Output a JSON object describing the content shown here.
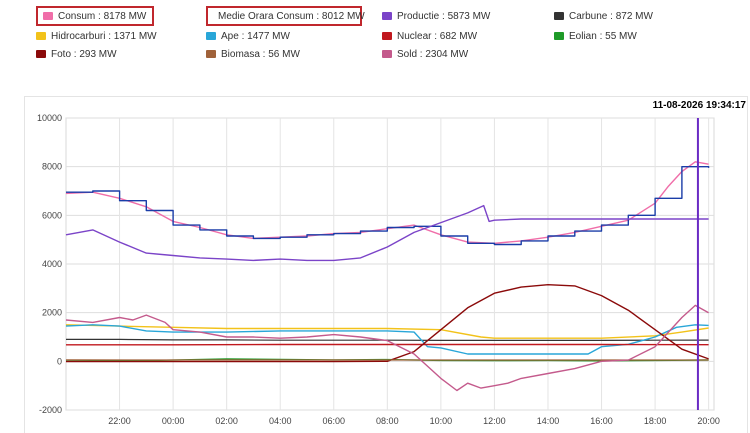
{
  "legend": [
    {
      "label": "Consum : 8178 MW",
      "color": "#f06ea9",
      "boxed": true
    },
    {
      "label": "Medie Orara Consum : 8012 MW",
      "color": "#1a3da8",
      "boxed": true
    },
    {
      "label": "Productie : 5873 MW",
      "color": "#7b44c8",
      "boxed": false
    },
    {
      "label": "Carbune : 872 MW",
      "color": "#333333",
      "boxed": false
    },
    {
      "label": "Hidrocarburi : 1371 MW",
      "color": "#f2c21a",
      "boxed": false
    },
    {
      "label": "Ape : 1477 MW",
      "color": "#29a6d8",
      "boxed": false
    },
    {
      "label": "Nuclear : 682 MW",
      "color": "#c0181e",
      "boxed": false
    },
    {
      "label": "Eolian : 55 MW",
      "color": "#1e9a28",
      "boxed": false
    },
    {
      "label": "Foto : 293 MW",
      "color": "#8b0a0a",
      "boxed": false
    },
    {
      "label": "Biomasa : 56 MW",
      "color": "#a0623a",
      "boxed": false
    },
    {
      "label": "Sold : 2304 MW",
      "color": "#c45a8c",
      "boxed": false
    }
  ],
  "timestamp": "11-08-2026 19:34:17",
  "chart_data": {
    "type": "line",
    "x_unit": "hours from 20:00 of previous day",
    "xlim": [
      20,
      44.2
    ],
    "ylim": [
      -2000,
      10000
    ],
    "y_ticks": [
      "10000",
      "8000",
      "6000",
      "4000",
      "2000",
      "0",
      "-2000"
    ],
    "y_tick_values": [
      10000,
      8000,
      6000,
      4000,
      2000,
      0,
      -2000
    ],
    "x_ticks": [
      "22:00",
      "00:00",
      "02:00",
      "04:00",
      "06:00",
      "08:00",
      "10:00",
      "12:00",
      "14:00",
      "16:00",
      "18:00",
      "20:00"
    ],
    "x_tick_values": [
      22,
      24,
      26,
      28,
      30,
      32,
      34,
      36,
      38,
      40,
      42,
      44
    ],
    "current_time_marker": 43.6,
    "grid": true,
    "series": [
      {
        "name": "Consum",
        "color": "#f06ea9",
        "width": 1.4,
        "points": [
          [
            20,
            6900
          ],
          [
            21,
            6950
          ],
          [
            22,
            6700
          ],
          [
            23,
            6350
          ],
          [
            24,
            5750
          ],
          [
            25,
            5500
          ],
          [
            26,
            5200
          ],
          [
            27,
            5050
          ],
          [
            28,
            5100
          ],
          [
            29,
            5150
          ],
          [
            30,
            5250
          ],
          [
            31,
            5300
          ],
          [
            32,
            5450
          ],
          [
            33,
            5600
          ],
          [
            34,
            5200
          ],
          [
            35,
            4900
          ],
          [
            36,
            4850
          ],
          [
            37,
            4950
          ],
          [
            38,
            5100
          ],
          [
            39,
            5300
          ],
          [
            40,
            5550
          ],
          [
            41,
            5800
          ],
          [
            42,
            6500
          ],
          [
            42.5,
            7200
          ],
          [
            43,
            7800
          ],
          [
            43.5,
            8200
          ],
          [
            44,
            8100
          ]
        ]
      },
      {
        "name": "Medie Orara Consum",
        "color": "#1a3da8",
        "width": 1.4,
        "step": true,
        "points": [
          [
            20,
            6950
          ],
          [
            21,
            7000
          ],
          [
            22,
            6600
          ],
          [
            23,
            6200
          ],
          [
            24,
            5600
          ],
          [
            25,
            5400
          ],
          [
            26,
            5150
          ],
          [
            27,
            5050
          ],
          [
            28,
            5100
          ],
          [
            29,
            5200
          ],
          [
            30,
            5250
          ],
          [
            31,
            5350
          ],
          [
            32,
            5500
          ],
          [
            33,
            5550
          ],
          [
            34,
            5150
          ],
          [
            35,
            4850
          ],
          [
            36,
            4800
          ],
          [
            37,
            4950
          ],
          [
            38,
            5150
          ],
          [
            39,
            5350
          ],
          [
            40,
            5600
          ],
          [
            41,
            6000
          ],
          [
            42,
            6700
          ],
          [
            43,
            8000
          ],
          [
            44,
            7950
          ]
        ]
      },
      {
        "name": "Productie",
        "color": "#7b44c8",
        "width": 1.4,
        "points": [
          [
            20,
            5200
          ],
          [
            21,
            5400
          ],
          [
            22,
            4900
          ],
          [
            23,
            4450
          ],
          [
            24,
            4350
          ],
          [
            25,
            4250
          ],
          [
            26,
            4200
          ],
          [
            27,
            4150
          ],
          [
            28,
            4200
          ],
          [
            29,
            4150
          ],
          [
            30,
            4150
          ],
          [
            31,
            4250
          ],
          [
            32,
            4700
          ],
          [
            33,
            5300
          ],
          [
            34,
            5700
          ],
          [
            35,
            6100
          ],
          [
            35.6,
            6400
          ],
          [
            35.8,
            5750
          ],
          [
            36,
            5800
          ],
          [
            37,
            5850
          ],
          [
            38,
            5850
          ],
          [
            39,
            5850
          ],
          [
            40,
            5850
          ],
          [
            41,
            5850
          ],
          [
            42,
            5850
          ],
          [
            43,
            5850
          ],
          [
            44,
            5850
          ]
        ]
      },
      {
        "name": "Carbune",
        "color": "#333333",
        "width": 1.2,
        "points": [
          [
            20,
            900
          ],
          [
            22,
            900
          ],
          [
            24,
            880
          ],
          [
            26,
            880
          ],
          [
            28,
            870
          ],
          [
            30,
            870
          ],
          [
            32,
            870
          ],
          [
            34,
            860
          ],
          [
            36,
            860
          ],
          [
            38,
            860
          ],
          [
            40,
            860
          ],
          [
            42,
            870
          ],
          [
            44,
            872
          ]
        ]
      },
      {
        "name": "Hidrocarburi",
        "color": "#f2c21a",
        "width": 1.4,
        "points": [
          [
            20,
            1500
          ],
          [
            22,
            1450
          ],
          [
            24,
            1400
          ],
          [
            26,
            1350
          ],
          [
            28,
            1350
          ],
          [
            30,
            1350
          ],
          [
            32,
            1350
          ],
          [
            34,
            1300
          ],
          [
            35.5,
            1000
          ],
          [
            36,
            950
          ],
          [
            38,
            950
          ],
          [
            40,
            950
          ],
          [
            42,
            1050
          ],
          [
            43,
            1200
          ],
          [
            44,
            1371
          ]
        ]
      },
      {
        "name": "Ape",
        "color": "#29a6d8",
        "width": 1.4,
        "points": [
          [
            20,
            1450
          ],
          [
            21,
            1500
          ],
          [
            22,
            1450
          ],
          [
            23,
            1250
          ],
          [
            24,
            1200
          ],
          [
            26,
            1200
          ],
          [
            28,
            1250
          ],
          [
            30,
            1250
          ],
          [
            32,
            1250
          ],
          [
            33,
            1200
          ],
          [
            33.5,
            600
          ],
          [
            34,
            550
          ],
          [
            35,
            300
          ],
          [
            36,
            300
          ],
          [
            38,
            300
          ],
          [
            39.5,
            300
          ],
          [
            40,
            600
          ],
          [
            41,
            700
          ],
          [
            42,
            1000
          ],
          [
            42.8,
            1400
          ],
          [
            43.5,
            1500
          ],
          [
            44,
            1477
          ]
        ]
      },
      {
        "name": "Nuclear",
        "color": "#c0181e",
        "width": 1.4,
        "points": [
          [
            20,
            680
          ],
          [
            24,
            680
          ],
          [
            28,
            690
          ],
          [
            32,
            690
          ],
          [
            36,
            690
          ],
          [
            40,
            690
          ],
          [
            44,
            682
          ]
        ]
      },
      {
        "name": "Eolian",
        "color": "#1e9a28",
        "width": 1.4,
        "points": [
          [
            20,
            0
          ],
          [
            22,
            10
          ],
          [
            24,
            50
          ],
          [
            26,
            100
          ],
          [
            28,
            80
          ],
          [
            30,
            60
          ],
          [
            32,
            70
          ],
          [
            34,
            40
          ],
          [
            36,
            30
          ],
          [
            38,
            40
          ],
          [
            40,
            20
          ],
          [
            42,
            40
          ],
          [
            44,
            55
          ]
        ]
      },
      {
        "name": "Foto",
        "color": "#8b0a0a",
        "width": 1.4,
        "points": [
          [
            20,
            -10
          ],
          [
            30,
            -10
          ],
          [
            32,
            0
          ],
          [
            33,
            400
          ],
          [
            34,
            1300
          ],
          [
            35,
            2200
          ],
          [
            36,
            2800
          ],
          [
            37,
            3050
          ],
          [
            38,
            3150
          ],
          [
            39,
            3100
          ],
          [
            40,
            2700
          ],
          [
            41,
            2100
          ],
          [
            42,
            1300
          ],
          [
            43,
            500
          ],
          [
            44,
            100
          ]
        ]
      },
      {
        "name": "Biomasa",
        "color": "#a0623a",
        "width": 1.2,
        "points": [
          [
            20,
            60
          ],
          [
            24,
            55
          ],
          [
            28,
            55
          ],
          [
            32,
            55
          ],
          [
            36,
            55
          ],
          [
            40,
            55
          ],
          [
            44,
            56
          ]
        ]
      },
      {
        "name": "Sold",
        "color": "#c45a8c",
        "width": 1.4,
        "points": [
          [
            20,
            1700
          ],
          [
            21,
            1600
          ],
          [
            22,
            1800
          ],
          [
            22.5,
            1700
          ],
          [
            23,
            1900
          ],
          [
            23.7,
            1600
          ],
          [
            24,
            1300
          ],
          [
            25,
            1200
          ],
          [
            26,
            1000
          ],
          [
            27,
            1000
          ],
          [
            28,
            950
          ],
          [
            29,
            1000
          ],
          [
            30,
            1100
          ],
          [
            31,
            1000
          ],
          [
            32,
            850
          ],
          [
            33,
            300
          ],
          [
            34,
            -700
          ],
          [
            34.6,
            -1200
          ],
          [
            35,
            -900
          ],
          [
            35.5,
            -1100
          ],
          [
            36,
            -1000
          ],
          [
            36.5,
            -900
          ],
          [
            37,
            -700
          ],
          [
            38,
            -500
          ],
          [
            39,
            -300
          ],
          [
            40,
            0
          ],
          [
            41,
            50
          ],
          [
            42,
            600
          ],
          [
            42.5,
            1200
          ],
          [
            43,
            1800
          ],
          [
            43.5,
            2300
          ],
          [
            44,
            2000
          ]
        ]
      }
    ]
  }
}
